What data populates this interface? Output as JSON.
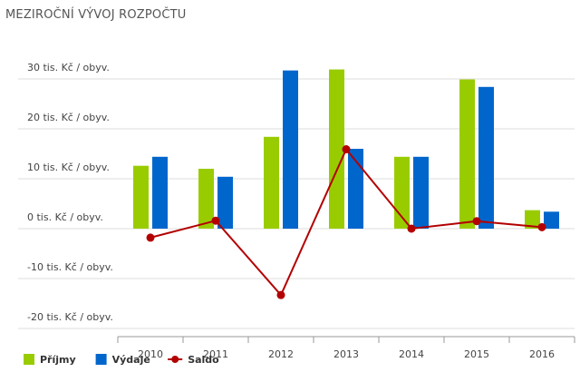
{
  "title": "MEZIROČNÍ VÝVOJ ROZPOČTU",
  "colors": {
    "prijmy": "#99cc00",
    "vydaje": "#0066cc",
    "saldo": "#b30000",
    "grid": "#dddddd",
    "axis": "#999999"
  },
  "chart_data": {
    "type": "bar",
    "title": "MEZIROČNÍ VÝVOJ ROZPOČTU",
    "xlabel": "",
    "ylabel": "",
    "categories": [
      "2010",
      "2011",
      "2012",
      "2013",
      "2014",
      "2015",
      "2016"
    ],
    "ylim": [
      -20,
      30
    ],
    "y_ticks": [
      30,
      20,
      10,
      0,
      -10,
      -20
    ],
    "y_tick_labels": [
      "30 tis. Kč / obyv.",
      "20 tis. Kč / obyv.",
      "10 tis. Kč / obyv.",
      "0 tis. Kč / obyv.",
      "-10 tis. Kč / obyv.",
      "-20 tis. Kč / obyv."
    ],
    "grid": true,
    "legend_position": "bottom-left",
    "series": [
      {
        "name": "Příjmy",
        "type": "bar",
        "values": [
          12.6,
          12.0,
          18.4,
          31.9,
          14.4,
          29.9,
          3.7
        ]
      },
      {
        "name": "Výdaje",
        "type": "bar",
        "values": [
          14.4,
          10.4,
          31.7,
          16.0,
          14.4,
          28.4,
          3.4
        ]
      },
      {
        "name": "Saldo",
        "type": "line",
        "values": [
          -1.8,
          1.6,
          -13.3,
          15.9,
          0.0,
          1.5,
          0.3
        ]
      }
    ]
  }
}
